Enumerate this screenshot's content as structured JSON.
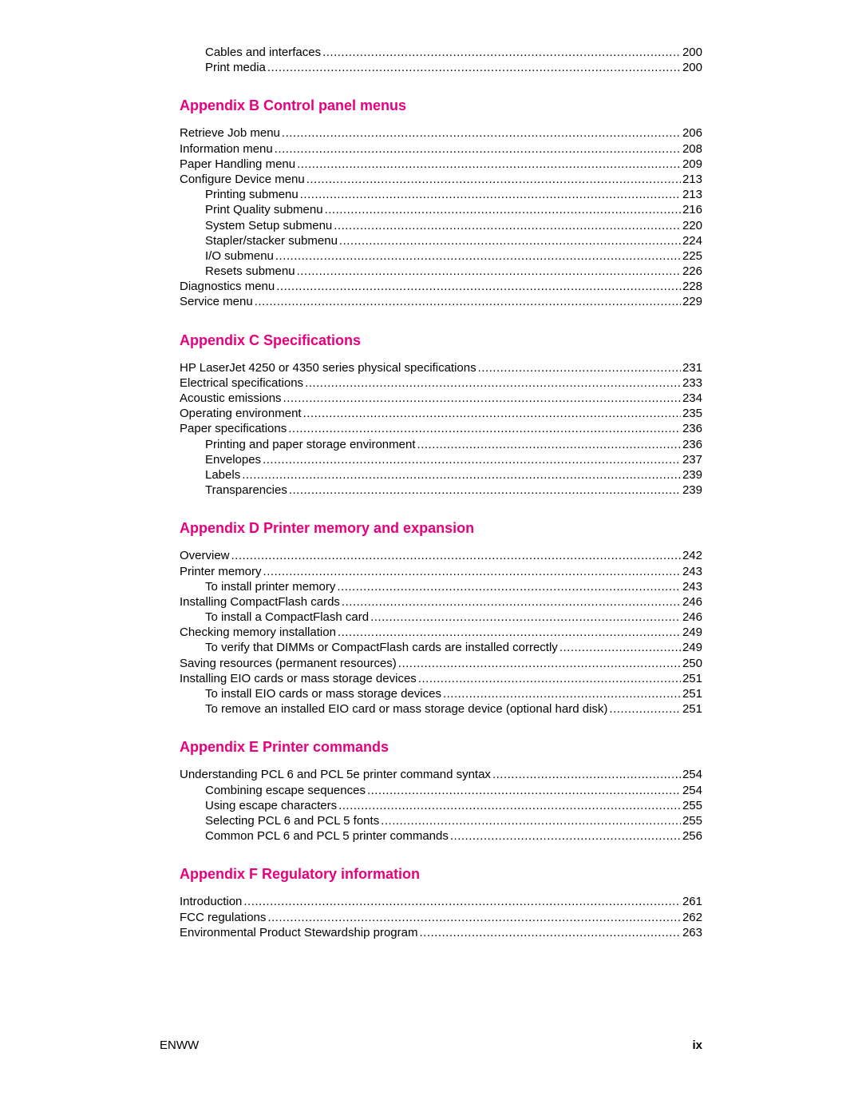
{
  "colors": {
    "heading": "#e6007e",
    "text": "#000000",
    "background": "#ffffff"
  },
  "typography": {
    "body_fontsize": 15,
    "heading_fontsize": 18,
    "font_family": "Arial"
  },
  "orphan_entries": [
    {
      "label": "Cables and interfaces",
      "page": "200",
      "indent": 1
    },
    {
      "label": "Print media",
      "page": "200",
      "indent": 1
    }
  ],
  "sections": [
    {
      "heading": "Appendix B  Control panel menus",
      "entries": [
        {
          "label": "Retrieve Job menu",
          "page": "206",
          "indent": 0
        },
        {
          "label": "Information menu",
          "page": "208",
          "indent": 0
        },
        {
          "label": "Paper Handling menu",
          "page": "209",
          "indent": 0
        },
        {
          "label": "Configure Device menu",
          "page": "213",
          "indent": 0
        },
        {
          "label": "Printing submenu",
          "page": "213",
          "indent": 1
        },
        {
          "label": "Print Quality submenu",
          "page": "216",
          "indent": 1
        },
        {
          "label": "System Setup submenu",
          "page": "220",
          "indent": 1
        },
        {
          "label": "Stapler/stacker submenu",
          "page": "224",
          "indent": 1
        },
        {
          "label": "I/O submenu",
          "page": "225",
          "indent": 1
        },
        {
          "label": "Resets submenu",
          "page": "226",
          "indent": 1
        },
        {
          "label": "Diagnostics menu",
          "page": "228",
          "indent": 0
        },
        {
          "label": "Service menu",
          "page": "229",
          "indent": 0
        }
      ]
    },
    {
      "heading": "Appendix C  Specifications",
      "entries": [
        {
          "label": "HP LaserJet 4250 or 4350 series physical specifications",
          "page": "231",
          "indent": 0
        },
        {
          "label": "Electrical specifications",
          "page": "233",
          "indent": 0
        },
        {
          "label": "Acoustic emissions",
          "page": "234",
          "indent": 0
        },
        {
          "label": "Operating environment",
          "page": "235",
          "indent": 0
        },
        {
          "label": "Paper specifications",
          "page": "236",
          "indent": 0
        },
        {
          "label": "Printing and paper storage environment",
          "page": "236",
          "indent": 1
        },
        {
          "label": "Envelopes",
          "page": "237",
          "indent": 1
        },
        {
          "label": "Labels",
          "page": "239",
          "indent": 1
        },
        {
          "label": "Transparencies",
          "page": "239",
          "indent": 1
        }
      ]
    },
    {
      "heading": "Appendix D  Printer memory and expansion",
      "entries": [
        {
          "label": "Overview",
          "page": "242",
          "indent": 0
        },
        {
          "label": "Printer memory",
          "page": "243",
          "indent": 0
        },
        {
          "label": "To install printer memory",
          "page": "243",
          "indent": 1
        },
        {
          "label": "Installing CompactFlash cards",
          "page": "246",
          "indent": 0
        },
        {
          "label": "To install a CompactFlash card",
          "page": "246",
          "indent": 1
        },
        {
          "label": "Checking memory installation",
          "page": "249",
          "indent": 0
        },
        {
          "label": "To verify that DIMMs or CompactFlash cards are installed correctly",
          "page": "249",
          "indent": 1
        },
        {
          "label": "Saving resources (permanent resources)",
          "page": "250",
          "indent": 0
        },
        {
          "label": "Installing EIO cards or mass storage devices",
          "page": "251",
          "indent": 0
        },
        {
          "label": "To install EIO cards or mass storage devices",
          "page": "251",
          "indent": 1
        },
        {
          "label": "To remove an installed EIO card or mass storage device (optional hard disk)",
          "page": "251",
          "indent": 1
        }
      ]
    },
    {
      "heading": "Appendix E  Printer commands",
      "entries": [
        {
          "label": "Understanding PCL 6 and PCL 5e printer command syntax",
          "page": "254",
          "indent": 0
        },
        {
          "label": "Combining escape sequences",
          "page": "254",
          "indent": 1
        },
        {
          "label": "Using escape characters",
          "page": "255",
          "indent": 1
        },
        {
          "label": "Selecting PCL 6 and PCL 5 fonts",
          "page": "255",
          "indent": 1
        },
        {
          "label": "Common PCL 6 and PCL 5 printer commands",
          "page": "256",
          "indent": 1
        }
      ]
    },
    {
      "heading": "Appendix F  Regulatory information",
      "entries": [
        {
          "label": "Introduction",
          "page": "261",
          "indent": 0
        },
        {
          "label": "FCC regulations",
          "page": "262",
          "indent": 0
        },
        {
          "label": "Environmental Product Stewardship program",
          "page": "263",
          "indent": 0
        }
      ]
    }
  ],
  "footer": {
    "left": "ENWW",
    "right": "ix"
  }
}
